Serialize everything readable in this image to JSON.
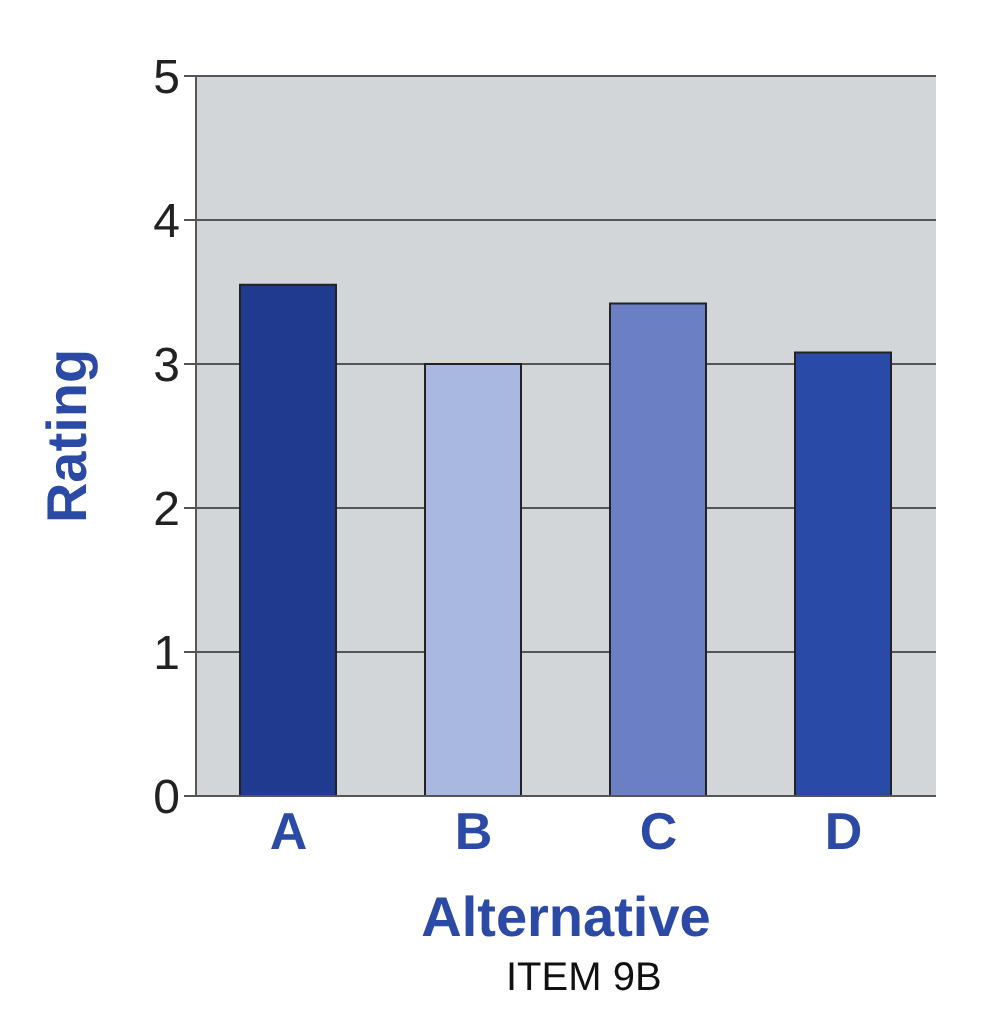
{
  "chart_data": {
    "type": "bar",
    "xlabel": "Alternative",
    "ylabel": "Rating",
    "categories": [
      "A",
      "B",
      "C",
      "D"
    ],
    "values": [
      3.55,
      3.0,
      3.42,
      3.08
    ],
    "colors": [
      "#1f3a8f",
      "#a9b8e0",
      "#6b80c4",
      "#2a4aa8"
    ],
    "ylim": [
      0,
      5
    ],
    "yticks": [
      0,
      1,
      2,
      3,
      4,
      5
    ],
    "grid": "y",
    "annotations": [
      "ITEM 9B"
    ]
  }
}
